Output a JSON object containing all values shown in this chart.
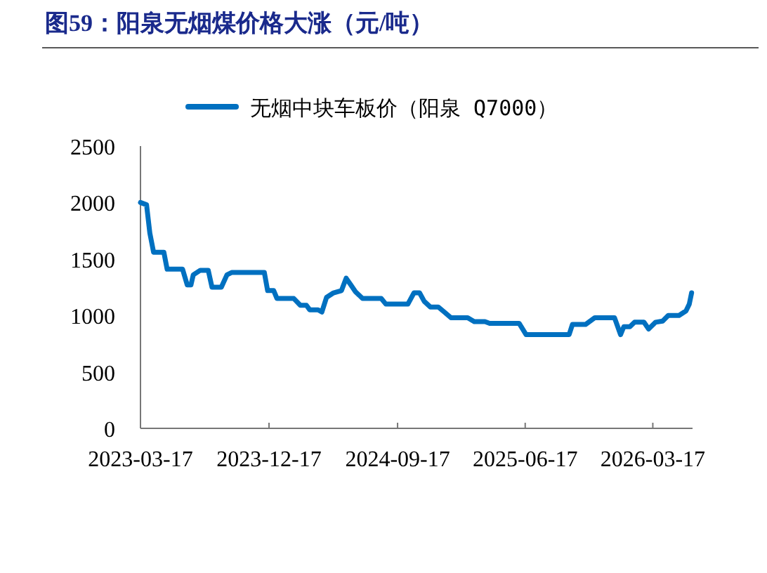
{
  "chart_data": {
    "type": "line",
    "title": "图59：阳泉无烟煤价格大涨（元/吨）",
    "x": [
      "2023-03-17",
      "2023-03-30",
      "2023-04-06",
      "2023-04-14",
      "2023-05-06",
      "2023-05-13",
      "2023-06-15",
      "2023-06-25",
      "2023-07-03",
      "2023-07-08",
      "2023-07-23",
      "2023-08-09",
      "2023-08-17",
      "2023-09-06",
      "2023-09-18",
      "2023-09-28",
      "2023-12-07",
      "2023-12-14",
      "2023-12-27",
      "2024-01-03",
      "2024-02-08",
      "2024-02-22",
      "2024-03-06",
      "2024-03-13",
      "2024-03-31",
      "2024-04-08",
      "2024-04-18",
      "2024-05-03",
      "2024-05-20",
      "2024-05-30",
      "2024-06-09",
      "2024-06-19",
      "2024-07-04",
      "2024-08-13",
      "2024-08-23",
      "2024-10-09",
      "2024-10-22",
      "2024-11-03",
      "2024-11-13",
      "2024-11-26",
      "2024-12-13",
      "2024-12-26",
      "2025-01-09",
      "2025-02-14",
      "2025-02-28",
      "2025-03-23",
      "2025-04-02",
      "2025-06-04",
      "2025-06-19",
      "2025-09-19",
      "2025-09-26",
      "2025-10-24",
      "2025-11-13",
      "2025-12-25",
      "2026-01-07",
      "2026-01-14",
      "2026-01-27",
      "2026-02-06",
      "2026-02-26",
      "2026-03-08",
      "2026-03-23",
      "2026-04-07",
      "2026-04-19",
      "2026-05-12",
      "2026-05-27",
      "2026-06-03",
      "2026-06-08"
    ],
    "series": [
      {
        "name": "无烟中块车板价（阳泉 Q7000）",
        "color": "#0070c0",
        "values": [
          2000,
          1980,
          1730,
          1560,
          1560,
          1410,
          1410,
          1270,
          1270,
          1360,
          1400,
          1400,
          1250,
          1250,
          1360,
          1380,
          1380,
          1220,
          1220,
          1150,
          1150,
          1090,
          1090,
          1050,
          1050,
          1030,
          1160,
          1200,
          1220,
          1330,
          1270,
          1210,
          1150,
          1150,
          1100,
          1100,
          1200,
          1200,
          1125,
          1075,
          1075,
          1030,
          980,
          980,
          945,
          945,
          930,
          930,
          830,
          830,
          920,
          920,
          980,
          980,
          830,
          900,
          900,
          940,
          940,
          880,
          940,
          950,
          1000,
          1000,
          1040,
          1100,
          1200
        ]
      }
    ],
    "xlim": [
      "2023-03-17",
      "2026-06-10"
    ],
    "xticks": [
      "2023-03-17",
      "2023-12-17",
      "2024-09-17",
      "2025-06-17",
      "2026-03-17"
    ],
    "ylim": [
      0,
      2500
    ],
    "yticks": [
      0,
      500,
      1000,
      1500,
      2000,
      2500
    ],
    "legend": "top",
    "line_style": "solid"
  }
}
